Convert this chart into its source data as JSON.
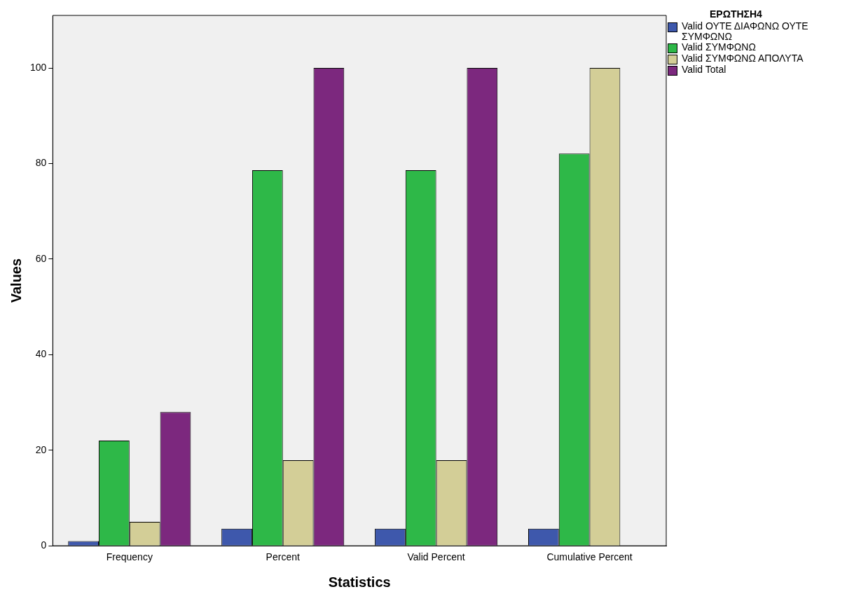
{
  "chart_data": {
    "type": "bar",
    "xlabel": "Statistics",
    "ylabel": "Values",
    "legend_title": "ΕΡΩΤΗΣΗ4",
    "legend": "top right",
    "categories": [
      "Frequency",
      "Percent",
      "Valid Percent",
      "Cumulative Percent"
    ],
    "series": [
      {
        "name": "Valid ΟΥΤΕ ΔΙΑΦΩΝΩ ΟΥΤΕ ΣΥΜΦΩΝΩ",
        "color": "#3e58ac",
        "values": [
          1,
          3.6,
          3.6,
          3.6
        ]
      },
      {
        "name": "Valid ΣΥΜΦΩΝΩ",
        "color": "#2eb848",
        "values": [
          22,
          78.6,
          78.6,
          82.1
        ]
      },
      {
        "name": "Valid ΣΥΜΦΩΝΩ ΑΠΟΛΥΤΑ",
        "color": "#d3ce97",
        "values": [
          5,
          17.9,
          17.9,
          100
        ]
      },
      {
        "name": "Valid Total",
        "color": "#7c287e",
        "values": [
          28,
          100,
          100,
          null
        ]
      }
    ],
    "ylim": [
      0,
      111
    ],
    "yticks": [
      0,
      20,
      40,
      60,
      80,
      100
    ],
    "grid": false
  }
}
